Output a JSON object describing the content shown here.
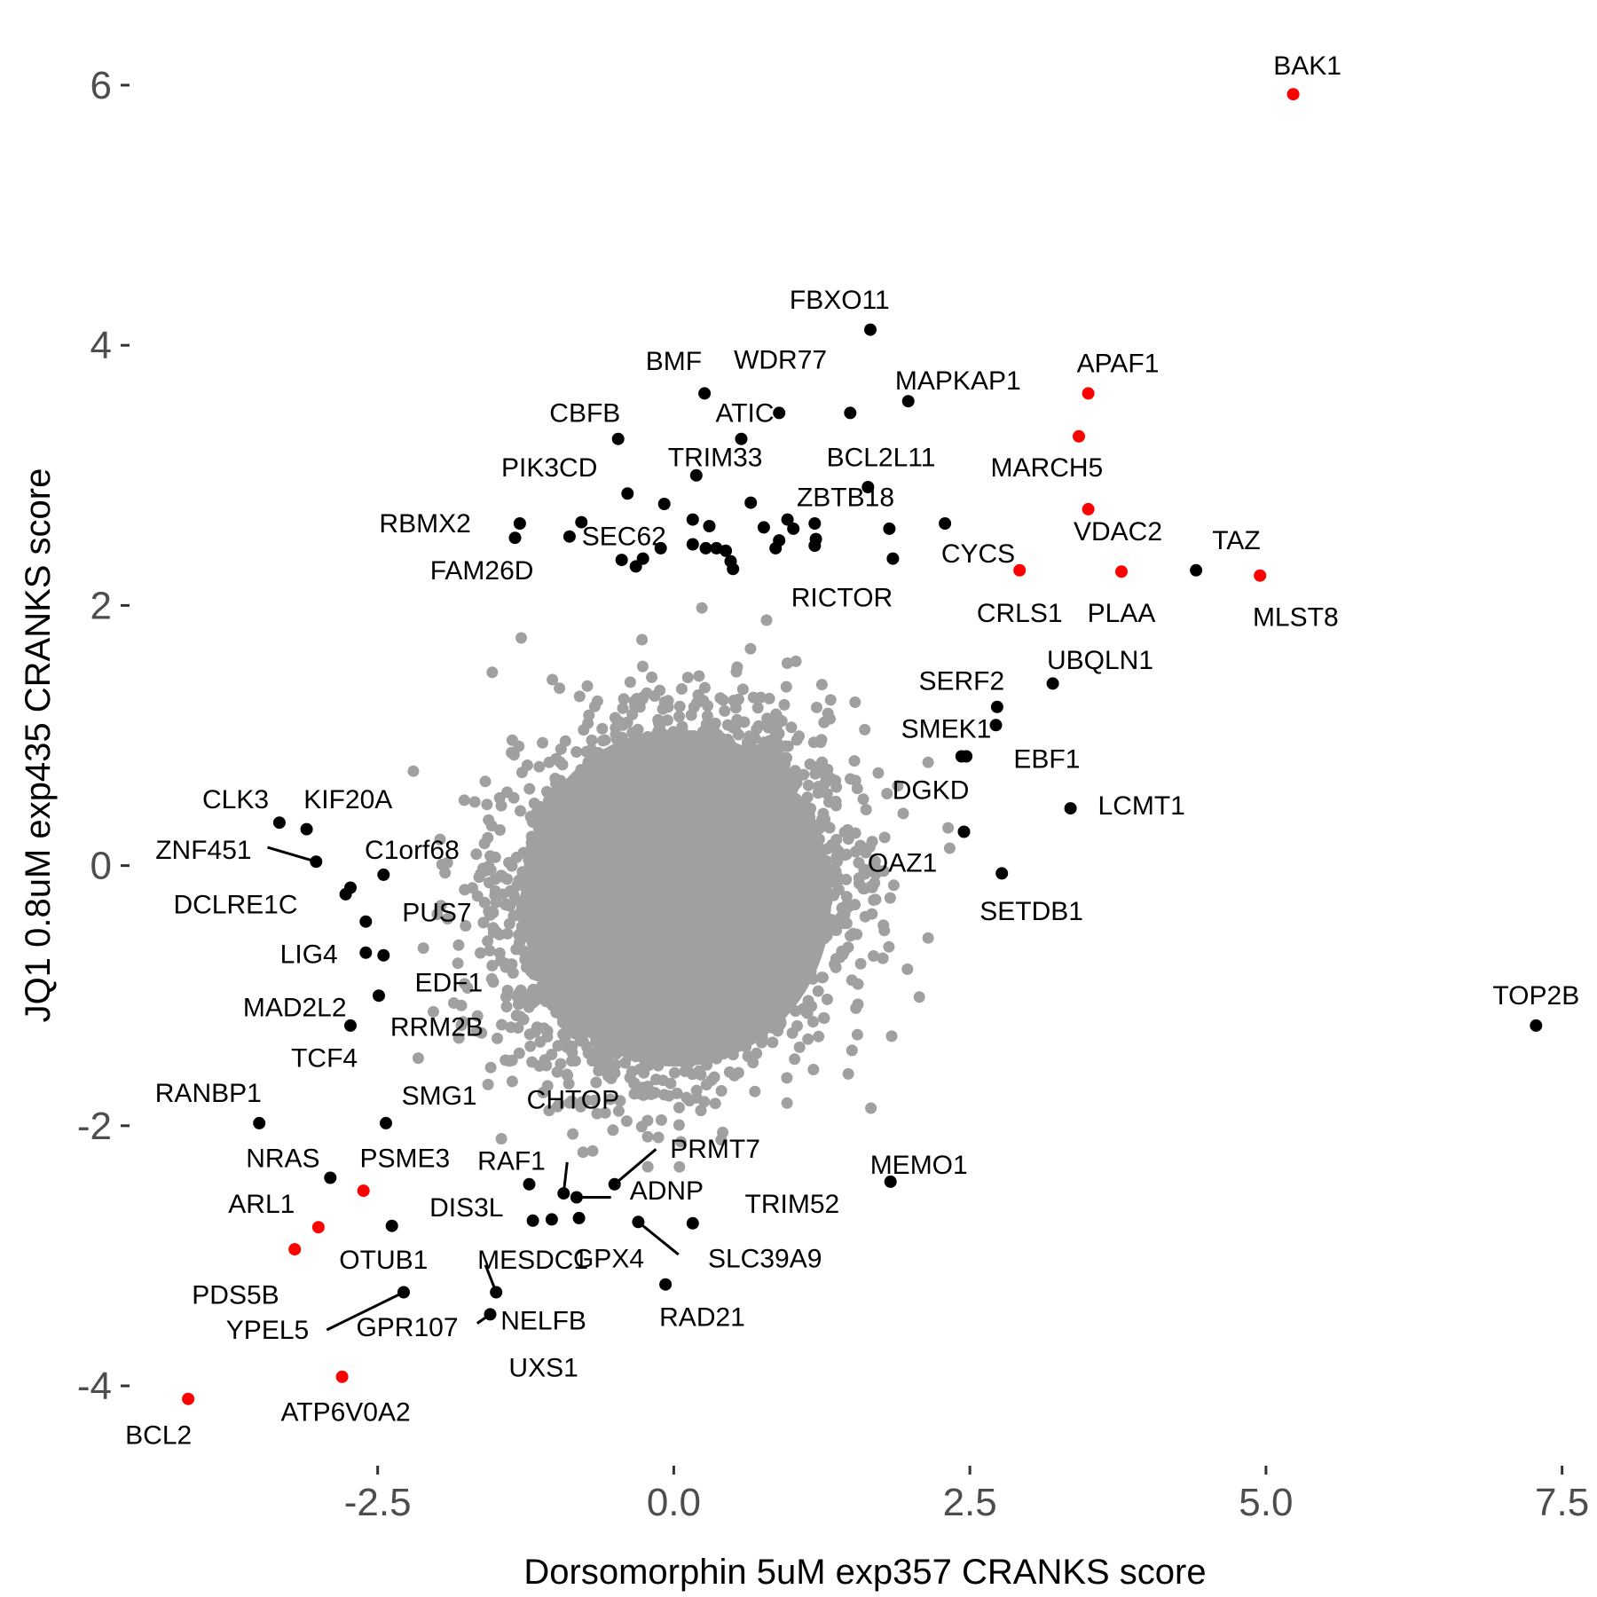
{
  "chart_data": {
    "type": "scatter",
    "title": "",
    "xlabel": "Dorsomorphin 5uM exp357 CRANKS score",
    "ylabel": "JQ1 0.8uM exp435 CRANKS score",
    "xlim": [
      -4.58,
      7.72
    ],
    "ylim": [
      -4.6,
      6.45
    ],
    "x_ticks": [
      -2.5,
      0.0,
      2.5,
      5.0,
      7.5
    ],
    "x_tick_labels": [
      "-2.5",
      "0.0",
      "2.5",
      "5.0",
      "7.5"
    ],
    "y_ticks": [
      -4,
      -2,
      0,
      2,
      4,
      6
    ],
    "y_tick_labels": [
      "-4",
      "-2",
      "0",
      "2",
      "4",
      "6"
    ],
    "grid": false,
    "legend": "none",
    "colors": {
      "background_points": "#a0a0a0",
      "highlight_black": "#000000",
      "highlight_red": "#ff0000",
      "tick_text": "#4d4d4d"
    },
    "background_cloud": {
      "description_free_note": "",
      "center": [
        0.0,
        -0.25
      ],
      "sd": [
        0.65,
        0.62
      ],
      "correlation": 0.15
    },
    "points": [
      {
        "label": "BAK1",
        "x": 5.23,
        "y": 5.93,
        "color": "red",
        "lx": 5.35,
        "ly": 6.15
      },
      {
        "label": "FBXO11",
        "x": 1.66,
        "y": 4.12,
        "color": "black",
        "lx": 1.4,
        "ly": 4.35
      },
      {
        "label": "APAF1",
        "x": 3.5,
        "y": 3.63,
        "color": "red",
        "lx": 3.75,
        "ly": 3.86
      },
      {
        "label": "MAPKAP1",
        "x": 1.98,
        "y": 3.57,
        "color": "black",
        "lx": 2.4,
        "ly": 3.73
      },
      {
        "label": "BMF",
        "x": 0.26,
        "y": 3.63,
        "color": "black",
        "lx": 0.0,
        "ly": 3.88
      },
      {
        "label": "WDR77",
        "x": 0.89,
        "y": 3.48,
        "color": "black",
        "lx": 0.9,
        "ly": 3.89
      },
      {
        "label": "ATIC",
        "x": 0.57,
        "y": 3.28,
        "color": "black",
        "lx": 0.6,
        "ly": 3.48
      },
      {
        "label": "",
        "x": 1.49,
        "y": 3.48,
        "color": "black"
      },
      {
        "label": "CBFB",
        "x": -0.47,
        "y": 3.28,
        "color": "black",
        "lx": -0.75,
        "ly": 3.48
      },
      {
        "label": "BCL2L11",
        "x": 1.75,
        "y": 3.14,
        "color": "black",
        "lx": 1.75,
        "ly": 3.14,
        "only_label": true
      },
      {
        "label": "MARCH5",
        "x": 3.42,
        "y": 3.3,
        "color": "red",
        "lx": 3.15,
        "ly": 3.06
      },
      {
        "label": "TRIM33",
        "x": 0.19,
        "y": 3.0,
        "color": "black",
        "lx": 0.35,
        "ly": 3.14
      },
      {
        "label": "PIK3CD",
        "x": -0.39,
        "y": 2.86,
        "color": "black",
        "lx": -1.05,
        "ly": 3.06
      },
      {
        "label": "ZBTB18",
        "x": 1.64,
        "y": 2.91,
        "color": "black",
        "lx": 1.45,
        "ly": 2.83
      },
      {
        "label": "VDAC2",
        "x": 3.5,
        "y": 2.74,
        "color": "red",
        "lx": 3.75,
        "ly": 2.57
      },
      {
        "label": "TAZ",
        "x": 4.41,
        "y": 2.27,
        "color": "black",
        "lx": 4.75,
        "ly": 2.5
      },
      {
        "label": "CYCS",
        "x": 2.92,
        "y": 2.27,
        "color": "red",
        "lx": 2.57,
        "ly": 2.4
      },
      {
        "label": "CRLS1",
        "x": 2.92,
        "y": 2.27,
        "color": "red",
        "lx": 2.92,
        "ly": 1.94,
        "only_label": true
      },
      {
        "label": "PLAA",
        "x": 3.78,
        "y": 2.26,
        "color": "red",
        "lx": 3.78,
        "ly": 1.94
      },
      {
        "label": "MLST8",
        "x": 4.95,
        "y": 2.23,
        "color": "red",
        "lx": 5.25,
        "ly": 1.91
      },
      {
        "label": "RBMX2",
        "x": -1.3,
        "y": 2.63,
        "color": "black",
        "lx": -2.1,
        "ly": 2.63
      },
      {
        "label": "",
        "x": -1.34,
        "y": 2.52,
        "color": "black"
      },
      {
        "label": "SEC62",
        "x": -0.78,
        "y": 2.64,
        "color": "black",
        "lx": -0.42,
        "ly": 2.53
      },
      {
        "label": "",
        "x": -0.88,
        "y": 2.53,
        "color": "black"
      },
      {
        "label": "FAM26D",
        "x": -1.31,
        "y": 2.52,
        "color": "black",
        "lx": -1.62,
        "ly": 2.27,
        "only_label": true
      },
      {
        "label": "RICTOR",
        "x": 1.22,
        "y": 2.18,
        "color": "black",
        "lx": 1.42,
        "ly": 2.06,
        "only_label": true
      },
      {
        "label": "",
        "x": -0.08,
        "y": 2.78,
        "color": "black"
      },
      {
        "label": "",
        "x": 0.16,
        "y": 2.66,
        "color": "black"
      },
      {
        "label": "",
        "x": 0.3,
        "y": 2.61,
        "color": "black"
      },
      {
        "label": "",
        "x": 0.65,
        "y": 2.79,
        "color": "black"
      },
      {
        "label": "",
        "x": 0.76,
        "y": 2.6,
        "color": "black"
      },
      {
        "label": "",
        "x": 0.96,
        "y": 2.66,
        "color": "black"
      },
      {
        "label": "",
        "x": 1.01,
        "y": 2.59,
        "color": "black"
      },
      {
        "label": "",
        "x": 1.19,
        "y": 2.63,
        "color": "black"
      },
      {
        "label": "",
        "x": 1.82,
        "y": 2.59,
        "color": "black"
      },
      {
        "label": "",
        "x": 2.29,
        "y": 2.63,
        "color": "black"
      },
      {
        "label": "",
        "x": 0.89,
        "y": 2.5,
        "color": "black"
      },
      {
        "label": "",
        "x": 1.2,
        "y": 2.51,
        "color": "black"
      },
      {
        "label": "",
        "x": 0.86,
        "y": 2.44,
        "color": "black"
      },
      {
        "label": "",
        "x": 1.19,
        "y": 2.46,
        "color": "black"
      },
      {
        "label": "",
        "x": 0.16,
        "y": 2.47,
        "color": "black"
      },
      {
        "label": "",
        "x": 0.27,
        "y": 2.44,
        "color": "black"
      },
      {
        "label": "",
        "x": 0.36,
        "y": 2.44,
        "color": "black"
      },
      {
        "label": "",
        "x": 0.44,
        "y": 2.42,
        "color": "black"
      },
      {
        "label": "",
        "x": 0.48,
        "y": 2.34,
        "color": "black"
      },
      {
        "label": "",
        "x": 0.5,
        "y": 2.28,
        "color": "black"
      },
      {
        "label": "",
        "x": -0.11,
        "y": 2.44,
        "color": "black"
      },
      {
        "label": "",
        "x": -0.26,
        "y": 2.36,
        "color": "black"
      },
      {
        "label": "",
        "x": -0.32,
        "y": 2.3,
        "color": "black"
      },
      {
        "label": "",
        "x": -0.44,
        "y": 2.35,
        "color": "black"
      },
      {
        "label": "",
        "x": 1.85,
        "y": 2.36,
        "color": "black"
      },
      {
        "label": "UBQLN1",
        "x": 3.2,
        "y": 1.4,
        "color": "black",
        "lx": 3.6,
        "ly": 1.58
      },
      {
        "label": "SERF2",
        "x": 2.73,
        "y": 1.22,
        "color": "black",
        "lx": 2.43,
        "ly": 1.42
      },
      {
        "label": "SMEK1",
        "x": 2.72,
        "y": 1.08,
        "color": "black",
        "lx": 2.3,
        "ly": 1.05
      },
      {
        "label": "EBF1",
        "x": 2.47,
        "y": 0.84,
        "color": "black",
        "lx": 3.15,
        "ly": 0.82
      },
      {
        "label": "",
        "x": 2.43,
        "y": 0.84,
        "color": "black"
      },
      {
        "label": "LCMT1",
        "x": 3.35,
        "y": 0.44,
        "color": "black",
        "lx": 3.95,
        "ly": 0.46
      },
      {
        "label": "DGKD",
        "x": 2.45,
        "y": 0.26,
        "color": "black",
        "lx": 2.17,
        "ly": 0.58
      },
      {
        "label": "OAZ1",
        "x": 2.45,
        "y": 0.26,
        "color": "black",
        "lx": 1.93,
        "ly": 0.02,
        "only_label": true
      },
      {
        "label": "SETDB1",
        "x": 2.77,
        "y": -0.06,
        "color": "black",
        "lx": 3.02,
        "ly": -0.35
      },
      {
        "label": "TOP2B",
        "x": 7.28,
        "y": -1.23,
        "color": "black",
        "lx": 7.28,
        "ly": -1.0
      },
      {
        "label": "CLK3",
        "x": -3.33,
        "y": 0.33,
        "color": "black",
        "lx": -3.7,
        "ly": 0.51
      },
      {
        "label": "KIF20A",
        "x": -3.1,
        "y": 0.28,
        "color": "black",
        "lx": -2.75,
        "ly": 0.51
      },
      {
        "label": "ZNF451",
        "x": -3.02,
        "y": 0.03,
        "color": "black",
        "lx": -3.97,
        "ly": 0.12,
        "leader": [
          -3.43,
          0.14
        ]
      },
      {
        "label": "C1orf68",
        "x": -2.45,
        "y": -0.07,
        "color": "black",
        "lx": -2.21,
        "ly": 0.12
      },
      {
        "label": "DCLRE1C",
        "x": -2.73,
        "y": -0.17,
        "color": "black",
        "lx": -3.7,
        "ly": -0.3
      },
      {
        "label": "",
        "x": -2.77,
        "y": -0.22,
        "color": "black"
      },
      {
        "label": "PUS7",
        "x": -2.6,
        "y": -0.43,
        "color": "black",
        "lx": -2.0,
        "ly": -0.36
      },
      {
        "label": "LIG4",
        "x": -2.6,
        "y": -0.67,
        "color": "black",
        "lx": -3.08,
        "ly": -0.68
      },
      {
        "label": "",
        "x": -2.45,
        "y": -0.69,
        "color": "black"
      },
      {
        "label": "EDF1",
        "x": -2.49,
        "y": -1.0,
        "color": "black",
        "lx": -1.9,
        "ly": -0.9
      },
      {
        "label": "MAD2L2",
        "x": -2.73,
        "y": -1.23,
        "color": "black",
        "lx": -3.2,
        "ly": -1.09
      },
      {
        "label": "RRM2B",
        "x": -2.73,
        "y": -1.23,
        "color": "black",
        "lx": -2.0,
        "ly": -1.24,
        "only_label": true
      },
      {
        "label": "TCF4",
        "x": -2.73,
        "y": -1.23,
        "color": "black",
        "lx": -2.95,
        "ly": -1.48,
        "only_label": true
      },
      {
        "label": "RANBP1",
        "x": -3.5,
        "y": -1.98,
        "color": "black",
        "lx": -3.93,
        "ly": -1.75
      },
      {
        "label": "SMG1",
        "x": -2.43,
        "y": -1.98,
        "color": "black",
        "lx": -1.98,
        "ly": -1.77
      },
      {
        "label": "CHTOP",
        "x": -0.93,
        "y": -2.52,
        "color": "black",
        "lx": -0.85,
        "ly": -1.8,
        "leader": [
          -0.9,
          -2.28
        ]
      },
      {
        "label": "PRMT7",
        "x": -0.5,
        "y": -2.45,
        "color": "black",
        "lx": 0.35,
        "ly": -2.18,
        "leader": [
          -0.15,
          -2.18
        ]
      },
      {
        "label": "RAF1",
        "x": -1.22,
        "y": -2.45,
        "color": "black",
        "lx": -1.37,
        "ly": -2.27
      },
      {
        "label": "ADNP",
        "x": -0.82,
        "y": -2.55,
        "color": "black",
        "lx": -0.06,
        "ly": -2.5,
        "leader": [
          -0.53,
          -2.55
        ]
      },
      {
        "label": "NRAS",
        "x": -2.9,
        "y": -2.4,
        "color": "black",
        "lx": -3.3,
        "ly": -2.25
      },
      {
        "label": "PSME3",
        "x": -2.62,
        "y": -2.5,
        "color": "red",
        "lx": -2.27,
        "ly": -2.25
      },
      {
        "label": "ARL1",
        "x": -3.0,
        "y": -2.78,
        "color": "red",
        "lx": -3.48,
        "ly": -2.6
      },
      {
        "label": "DIS3L",
        "x": -2.38,
        "y": -2.77,
        "color": "black",
        "lx": -1.75,
        "ly": -2.63
      },
      {
        "label": "TRIM52",
        "x": 0.16,
        "y": -2.75,
        "color": "black",
        "lx": 1.0,
        "ly": -2.6
      },
      {
        "label": "MEMO1",
        "x": 1.83,
        "y": -2.43,
        "color": "black",
        "lx": 2.07,
        "ly": -2.3
      },
      {
        "label": "",
        "x": -1.19,
        "y": -2.73,
        "color": "black"
      },
      {
        "label": "",
        "x": -1.03,
        "y": -2.72,
        "color": "black"
      },
      {
        "label": "",
        "x": -0.8,
        "y": -2.71,
        "color": "black"
      },
      {
        "label": "GPX4",
        "x": -0.3,
        "y": -2.74,
        "color": "black",
        "lx": -0.55,
        "ly": -3.02
      },
      {
        "label": "SLC39A9",
        "x": -0.3,
        "y": -2.74,
        "color": "black",
        "lx": 0.77,
        "ly": -3.02,
        "only_label": true,
        "leader": [
          0.04,
          -2.99
        ]
      },
      {
        "label": "PDS5B",
        "x": -3.2,
        "y": -2.95,
        "color": "red",
        "lx": -3.7,
        "ly": -3.3
      },
      {
        "label": "OTUB1",
        "x": -2.38,
        "y": -2.77,
        "color": "black",
        "lx": -2.45,
        "ly": -3.03,
        "only_label": true
      },
      {
        "label": "MESDC1",
        "x": -1.5,
        "y": -3.28,
        "color": "black",
        "lx": -1.19,
        "ly": -3.03,
        "leader": [
          -1.59,
          -3.07
        ]
      },
      {
        "label": "RAD21",
        "x": -0.07,
        "y": -3.22,
        "color": "black",
        "lx": 0.24,
        "ly": -3.47
      },
      {
        "label": "YPEL5",
        "x": -2.28,
        "y": -3.28,
        "color": "black",
        "lx": -3.43,
        "ly": -3.57,
        "leader": [
          -2.93,
          -3.57
        ]
      },
      {
        "label": "GPR107",
        "x": -2.28,
        "y": -3.28,
        "color": "black",
        "lx": -2.25,
        "ly": -3.55,
        "only_label": true
      },
      {
        "label": "NELFB",
        "x": -1.55,
        "y": -3.45,
        "color": "black",
        "lx": -1.1,
        "ly": -3.5,
        "leader": [
          -1.66,
          -3.52
        ]
      },
      {
        "label": "UXS1",
        "x": -1.55,
        "y": -3.45,
        "color": "black",
        "lx": -1.1,
        "ly": -3.86,
        "only_label": true
      },
      {
        "label": "ATP6V0A2",
        "x": -2.8,
        "y": -3.93,
        "color": "red",
        "lx": -2.77,
        "ly": -4.2
      },
      {
        "label": "BCL2",
        "x": -4.1,
        "y": -4.1,
        "color": "red",
        "lx": -4.35,
        "ly": -4.38
      }
    ]
  }
}
